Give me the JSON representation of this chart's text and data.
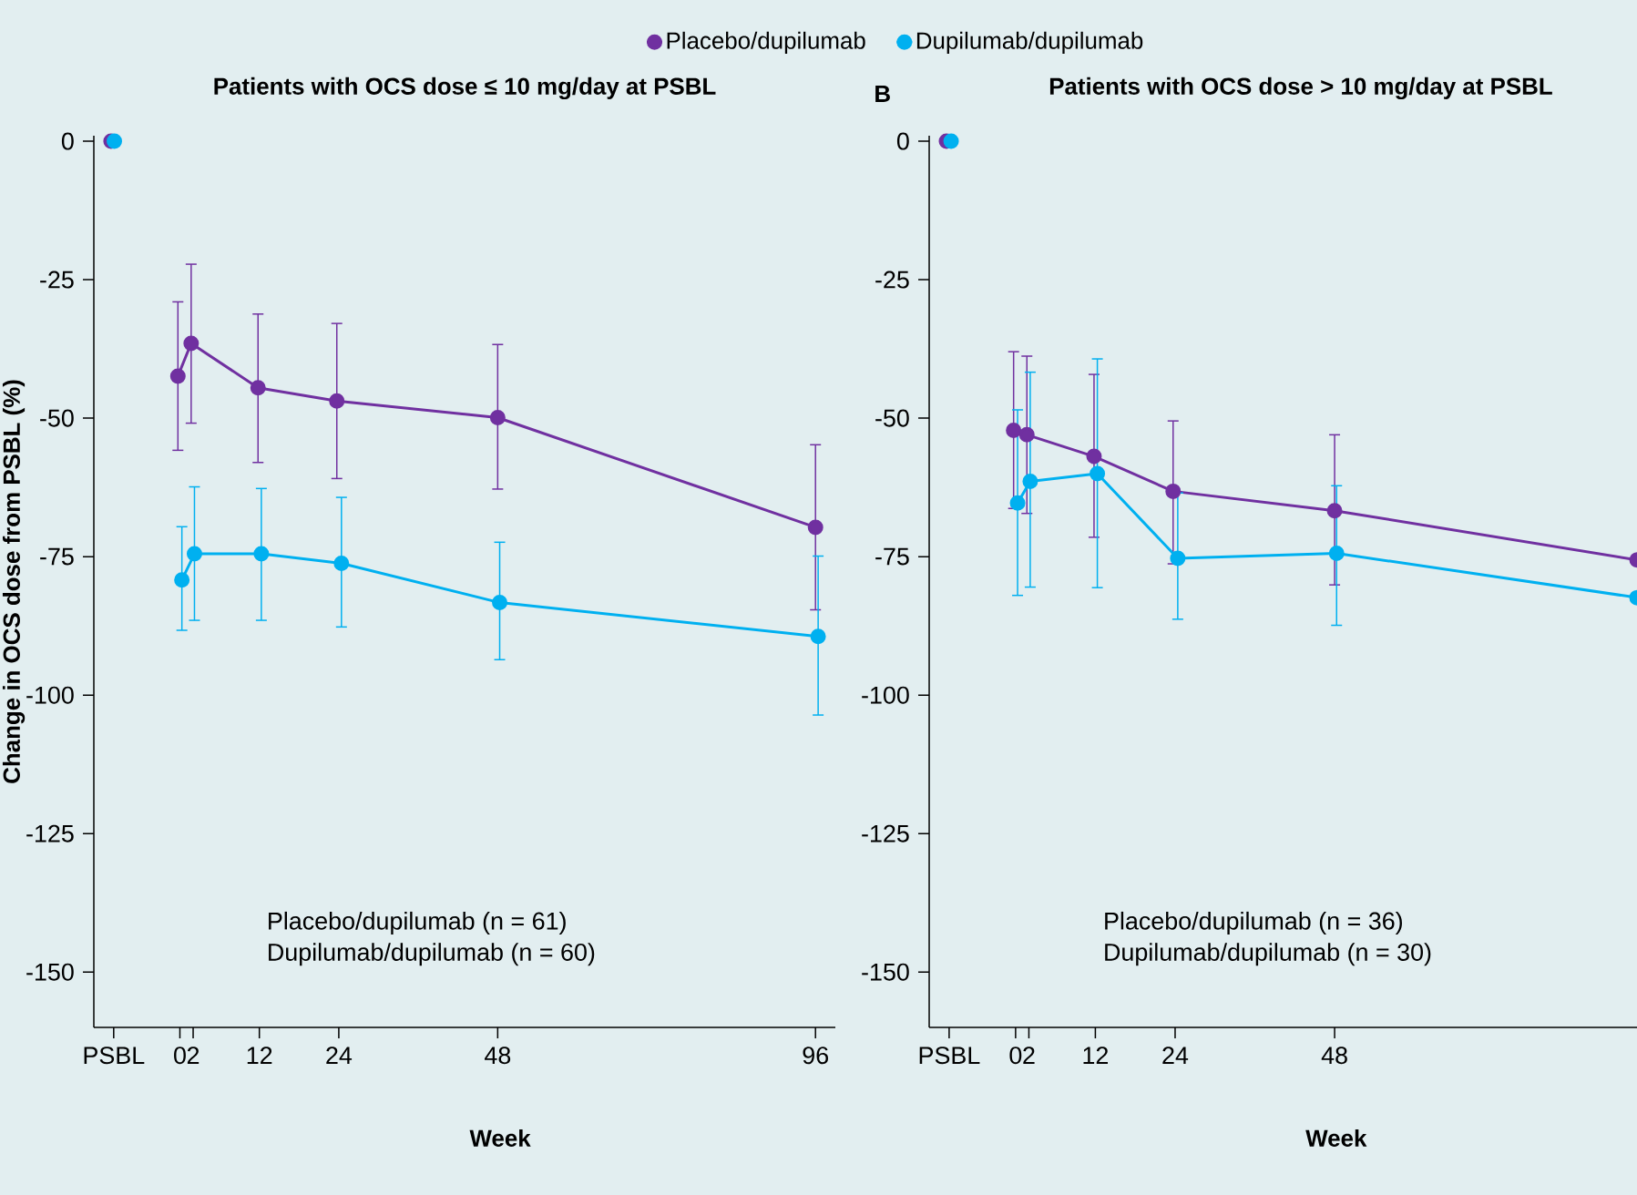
{
  "chart_data": [
    {
      "type": "line",
      "title": "Patients with OCS dose ≤ 10 mg/day at PSBL",
      "xlabel": "Week",
      "ylabel": "Change in OCS dose from PSBL (%)",
      "xlim": [
        -13,
        99
      ],
      "ylim": [
        -160,
        1
      ],
      "xticks": [
        {
          "value": -10,
          "label": "PSBL"
        },
        0,
        2,
        12,
        24,
        48,
        96
      ],
      "yticks": [
        0,
        -25,
        -50,
        -75,
        -100,
        -125,
        -150
      ],
      "marker": "circle",
      "line_style": "solid",
      "legend": "top",
      "series": [
        {
          "name": "Placebo/dupilumab",
          "color": "#7030a0",
          "x": [
            -10.4,
            -5,
            -0.3,
            1.7,
            11.8,
            23.7,
            48,
            96
          ],
          "values": [
            0,
            null,
            -42.4,
            -36.5,
            -44.5,
            -46.9,
            -49.9,
            -69.7
          ],
          "errors": [
            null,
            null,
            [
              -55.8,
              -29.0
            ],
            [
              -50.9,
              -22.2
            ],
            [
              -58.0,
              -31.2
            ],
            [
              -60.9,
              -32.9
            ],
            [
              -62.8,
              -36.7
            ],
            [
              -84.6,
              -54.8
            ]
          ]
        },
        {
          "name": "Dupilumab/dupilumab",
          "color": "#00b0f0",
          "x": [
            -9.9,
            -5,
            0.3,
            2.2,
            12.3,
            24.4,
            48.3,
            96.4
          ],
          "values": [
            0,
            null,
            -79.2,
            -74.5,
            -74.5,
            -76.2,
            -83.3,
            -89.4
          ],
          "errors": [
            null,
            null,
            [
              -88.3,
              -69.6
            ],
            [
              -86.5,
              -62.4
            ],
            [
              -86.5,
              -62.7
            ],
            [
              -87.7,
              -64.3
            ],
            [
              -93.6,
              -72.4
            ],
            [
              -103.6,
              -74.9
            ]
          ]
        }
      ],
      "annotations": [
        "Placebo/dupilumab (n = 61)",
        "Dupilumab/dupilumab (n = 60)"
      ]
    },
    {
      "type": "line",
      "title": "Patients with OCS dose > 10 mg/day at PSBL",
      "xlabel": "Week",
      "xlim": [
        -13,
        93.5
      ],
      "ylim": [
        -160,
        1
      ],
      "xticks": [
        {
          "value": -10,
          "label": "PSBL"
        },
        0,
        2,
        12,
        24,
        48
      ],
      "yticks": [
        0,
        -25,
        -50,
        -75,
        -100,
        -125,
        -150
      ],
      "marker": "circle",
      "line_style": "solid",
      "series": [
        {
          "color": "#7030a0",
          "x": [
            -10.4,
            -5,
            -0.3,
            1.7,
            11.8,
            23.7,
            48,
            93.5
          ],
          "values": [
            0,
            null,
            -52.2,
            -53.0,
            -56.9,
            -63.2,
            -66.7,
            -75.6
          ],
          "errors": [
            null,
            null,
            [
              -66.3,
              -38.0
            ],
            [
              -67.2,
              -38.8
            ],
            [
              -71.5,
              -42.1
            ],
            [
              -76.3,
              -50.5
            ],
            [
              -80.1,
              -53.0
            ],
            null
          ]
        },
        {
          "color": "#00b0f0",
          "x": [
            -9.7,
            -5,
            0.3,
            2.2,
            12.3,
            24.4,
            48.3,
            93.5
          ],
          "values": [
            0,
            null,
            -65.3,
            -61.4,
            -60.0,
            -75.3,
            -74.4,
            -82.4
          ],
          "errors": [
            null,
            null,
            [
              -82.0,
              -48.5
            ],
            [
              -80.5,
              -41.7
            ],
            [
              -80.6,
              -39.3
            ],
            [
              -86.3,
              -63.5
            ],
            [
              -87.4,
              -62.2
            ],
            null
          ]
        }
      ],
      "annotations": [
        "B",
        "Placebo/dupilumab (n = 36)",
        "Dupilumab/dupilumab (n = 30)"
      ]
    }
  ]
}
